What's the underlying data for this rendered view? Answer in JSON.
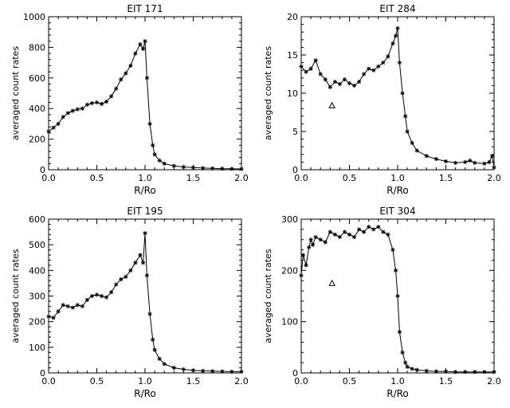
{
  "chart_data": [
    {
      "type": "line",
      "title": "EIT 171",
      "xlabel": "R/Ro",
      "ylabel": "averaged count rates",
      "xlim": [
        0,
        2
      ],
      "ylim": [
        0,
        1000
      ],
      "xticks": [
        0.0,
        0.5,
        1.0,
        1.5,
        2.0
      ],
      "xtick_labels": [
        "0.0",
        "0.5",
        "1.0",
        "1.5",
        "2.0"
      ],
      "yticks": [
        0,
        200,
        400,
        600,
        800,
        1000
      ],
      "ytick_labels": [
        "0",
        "200",
        "400",
        "600",
        "800",
        "1000"
      ],
      "series": [
        {
          "x": [
            0.0,
            0.05,
            0.1,
            0.15,
            0.2,
            0.25,
            0.3,
            0.35,
            0.4,
            0.45,
            0.5,
            0.55,
            0.6,
            0.65,
            0.7,
            0.75,
            0.8,
            0.85,
            0.9,
            0.95,
            0.98,
            1.0,
            1.02,
            1.05,
            1.08,
            1.1,
            1.15,
            1.2,
            1.3,
            1.4,
            1.5,
            1.6,
            1.7,
            1.8,
            1.9,
            2.0
          ],
          "y": [
            250,
            275,
            300,
            345,
            370,
            385,
            395,
            400,
            425,
            435,
            440,
            430,
            445,
            480,
            530,
            590,
            630,
            680,
            760,
            820,
            790,
            840,
            600,
            300,
            160,
            100,
            60,
            40,
            25,
            18,
            14,
            11,
            9,
            7,
            6,
            5
          ]
        }
      ],
      "markers": []
    },
    {
      "type": "line",
      "title": "EIT 284",
      "xlabel": "R/Ro",
      "ylabel": "averaged count rates",
      "xlim": [
        0,
        2
      ],
      "ylim": [
        0,
        20
      ],
      "xticks": [
        0.0,
        0.5,
        1.0,
        1.5,
        2.0
      ],
      "xtick_labels": [
        "0.0",
        "0.5",
        "1.0",
        "1.5",
        "2.0"
      ],
      "yticks": [
        0,
        5,
        10,
        15,
        20
      ],
      "ytick_labels": [
        "0",
        "5",
        "10",
        "15",
        "20"
      ],
      "series": [
        {
          "x": [
            0.0,
            0.05,
            0.1,
            0.15,
            0.2,
            0.25,
            0.3,
            0.35,
            0.4,
            0.45,
            0.5,
            0.55,
            0.6,
            0.65,
            0.7,
            0.75,
            0.8,
            0.85,
            0.9,
            0.95,
            0.98,
            1.0,
            1.02,
            1.05,
            1.08,
            1.1,
            1.15,
            1.2,
            1.3,
            1.4,
            1.5,
            1.6,
            1.7,
            1.75,
            1.8,
            1.9,
            1.95,
            1.98,
            2.0
          ],
          "y": [
            13.5,
            12.8,
            13.2,
            14.3,
            12.5,
            11.8,
            10.8,
            11.5,
            11.2,
            11.8,
            11.3,
            11.0,
            11.5,
            12.5,
            13.2,
            13.0,
            13.5,
            14.0,
            14.8,
            16.5,
            17.5,
            18.5,
            14.0,
            10.0,
            7.0,
            5.0,
            3.5,
            2.5,
            1.8,
            1.4,
            1.1,
            0.9,
            1.0,
            1.2,
            0.9,
            0.8,
            1.0,
            1.8,
            0.3
          ]
        }
      ],
      "markers": [
        {
          "symbol": "triangle",
          "x": 0.32,
          "y": 8.4
        }
      ]
    },
    {
      "type": "line",
      "title": "EIT 195",
      "xlabel": "R/Ro",
      "ylabel": "averaged count rates",
      "xlim": [
        0,
        2
      ],
      "ylim": [
        0,
        600
      ],
      "xticks": [
        0.0,
        0.5,
        1.0,
        1.5,
        2.0
      ],
      "xtick_labels": [
        "0.0",
        "0.5",
        "1.0",
        "1.5",
        "2.0"
      ],
      "yticks": [
        0,
        100,
        200,
        300,
        400,
        500,
        600
      ],
      "ytick_labels": [
        "0",
        "100",
        "200",
        "300",
        "400",
        "500",
        "600"
      ],
      "series": [
        {
          "x": [
            0.0,
            0.05,
            0.1,
            0.15,
            0.2,
            0.25,
            0.3,
            0.35,
            0.4,
            0.45,
            0.5,
            0.55,
            0.6,
            0.65,
            0.7,
            0.75,
            0.8,
            0.85,
            0.9,
            0.95,
            0.98,
            1.0,
            1.02,
            1.05,
            1.08,
            1.1,
            1.15,
            1.2,
            1.3,
            1.4,
            1.5,
            1.6,
            1.7,
            1.8,
            1.9,
            2.0
          ],
          "y": [
            220,
            215,
            240,
            265,
            260,
            255,
            265,
            260,
            285,
            300,
            305,
            300,
            295,
            315,
            345,
            365,
            375,
            400,
            430,
            460,
            430,
            545,
            380,
            230,
            130,
            90,
            55,
            35,
            20,
            14,
            10,
            8,
            7,
            6,
            5,
            5
          ]
        }
      ],
      "markers": []
    },
    {
      "type": "line",
      "title": "EIT 304",
      "xlabel": "R/Ro",
      "ylabel": "averaged count rates",
      "xlim": [
        0,
        2
      ],
      "ylim": [
        0,
        300
      ],
      "xticks": [
        0.0,
        0.5,
        1.0,
        1.5,
        2.0
      ],
      "xtick_labels": [
        "0.0",
        "0.5",
        "1.0",
        "1.5",
        "2.0"
      ],
      "yticks": [
        0,
        100,
        200,
        300
      ],
      "ytick_labels": [
        "0",
        "100",
        "200",
        "300"
      ],
      "series": [
        {
          "x": [
            0.0,
            0.02,
            0.05,
            0.08,
            0.1,
            0.12,
            0.15,
            0.2,
            0.25,
            0.3,
            0.35,
            0.4,
            0.45,
            0.5,
            0.55,
            0.6,
            0.65,
            0.7,
            0.75,
            0.8,
            0.85,
            0.9,
            0.95,
            0.98,
            1.0,
            1.02,
            1.05,
            1.08,
            1.1,
            1.15,
            1.2,
            1.3,
            1.4,
            1.5,
            1.6,
            1.7,
            1.8,
            1.9,
            2.0
          ],
          "y": [
            190,
            230,
            210,
            245,
            260,
            250,
            265,
            260,
            255,
            275,
            270,
            265,
            275,
            270,
            265,
            280,
            275,
            285,
            280,
            285,
            275,
            270,
            240,
            200,
            150,
            80,
            40,
            20,
            12,
            8,
            6,
            4,
            3,
            3,
            2,
            2,
            2,
            2,
            2
          ]
        }
      ],
      "markers": [
        {
          "symbol": "triangle",
          "x": 0.32,
          "y": 175
        }
      ]
    }
  ]
}
